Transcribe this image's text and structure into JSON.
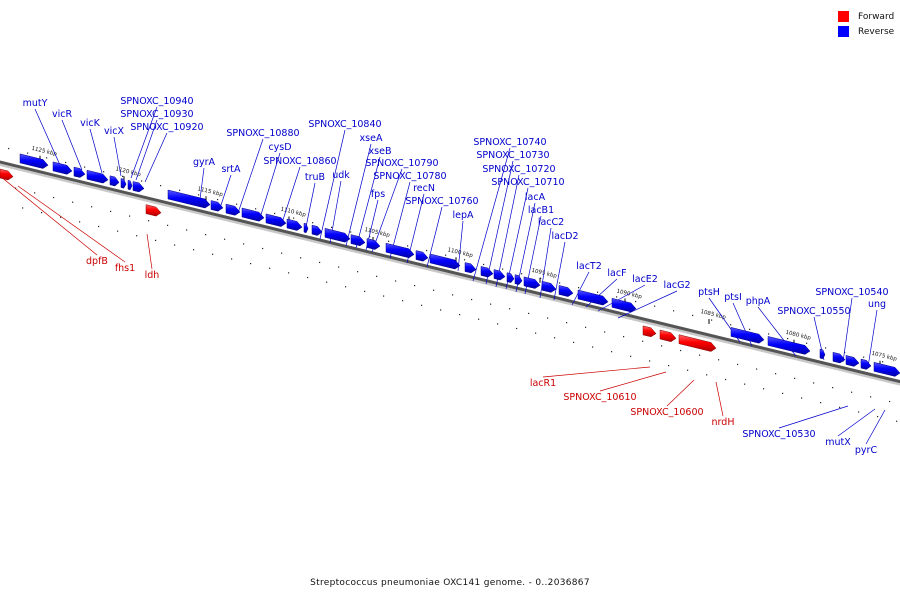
{
  "caption": "Streptococcus pneumoniae OXC141 genome. - 0..2036867",
  "legend": [
    {
      "label": "Forward",
      "color": "#ff0000"
    },
    {
      "label": "Reverse",
      "color": "#0000ff"
    }
  ],
  "colors": {
    "forward": "#ff0000",
    "reverse": "#0000ff",
    "backbone": "#555555"
  },
  "ticks": [
    "1125 kbp",
    "1120 kbp",
    "1115 kbp",
    "1110 kbp",
    "1105 kbp",
    "1100 kbp",
    "1095 kbp",
    "1090 kbp",
    "1085 kbp",
    "1080 kbp",
    "1075 kbp"
  ],
  "genes": {
    "reverse": [
      "mutY",
      "vicR",
      "vicK",
      "vicX",
      "SPNOXC_10940",
      "SPNOXC_10930",
      "SPNOXC_10920",
      "gyrA",
      "srtA",
      "SPNOXC_10880",
      "cysD",
      "SPNOXC_10860",
      "truB",
      "SPNOXC_10840",
      "udk",
      "xseA",
      "xseB",
      "SPNOXC_10790",
      "fps",
      "SPNOXC_10780",
      "recN",
      "SPNOXC_10760",
      "lepA",
      "SPNOXC_10740",
      "SPNOXC_10730",
      "SPNOXC_10720",
      "SPNOXC_10710",
      "lacA",
      "lacB1",
      "lacC2",
      "lacD2",
      "lacT2",
      "lacF",
      "lacE2",
      "lacG2",
      "ptsH",
      "ptsI",
      "phpA",
      "SPNOXC_10550",
      "SPNOXC_10540",
      "ung",
      "SPNOXC_10530",
      "mutX",
      "pyrC"
    ],
    "forward": [
      "dpfB",
      "fhs1",
      "ldh",
      "lacR1",
      "SPNOXC_10610",
      "SPNOXC_10600",
      "nrdH"
    ]
  }
}
